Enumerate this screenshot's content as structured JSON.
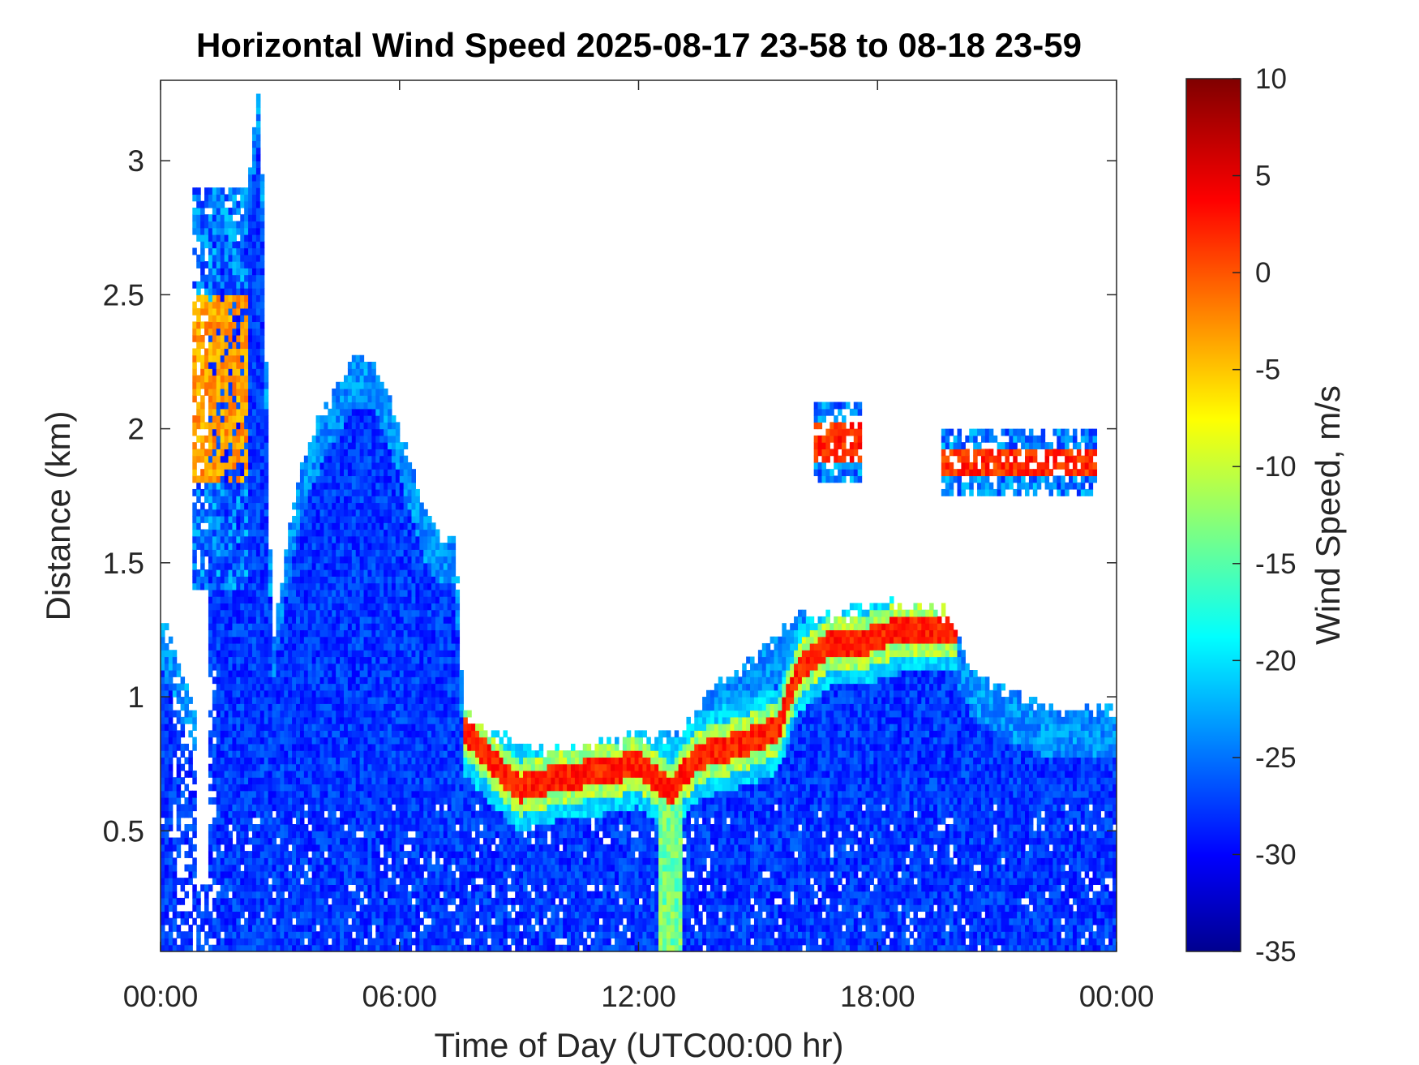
{
  "chart_data": {
    "type": "heatmap",
    "title": "Horizontal Wind Speed 2025-08-17 23-58 to 08-18 23-59",
    "xlabel": "Time of Day (UTC00:00 hr)",
    "ylabel": "Distance (km)",
    "x_ticks": [
      "00:00",
      "06:00",
      "12:00",
      "18:00",
      "00:00"
    ],
    "x_range_hours": [
      0,
      24
    ],
    "y_ticks": [
      "0.5",
      "1",
      "1.5",
      "2",
      "2.5",
      "3"
    ],
    "y_tick_values": [
      0.5,
      1,
      1.5,
      2,
      2.5,
      3
    ],
    "y_range_km": [
      0.05,
      3.3
    ],
    "colorbar": {
      "label": "Wind Speed, m/s",
      "range": [
        -35,
        10
      ],
      "ticks": [
        "10",
        "5",
        "0",
        "-5",
        "-10",
        "-15",
        "-20",
        "-25",
        "-30",
        "-35"
      ],
      "tick_values": [
        10,
        5,
        0,
        -5,
        -10,
        -15,
        -20,
        -25,
        -30,
        -35
      ],
      "colormap": "jet"
    },
    "data_mask_top_km": [
      [
        0,
        1.3
      ],
      [
        0.5,
        1.1
      ],
      [
        1.0,
        0.9
      ],
      [
        1.3,
        2.9
      ],
      [
        2.0,
        2.7
      ],
      [
        2.5,
        3.3
      ],
      [
        2.8,
        1.2
      ],
      [
        3.2,
        1.6
      ],
      [
        3.6,
        1.9
      ],
      [
        4.2,
        2.1
      ],
      [
        4.8,
        2.25
      ],
      [
        5.4,
        2.25
      ],
      [
        6.0,
        2.0
      ],
      [
        6.6,
        1.7
      ],
      [
        7.0,
        1.6
      ],
      [
        7.4,
        1.6
      ],
      [
        7.6,
        0.95
      ],
      [
        8.0,
        0.88
      ],
      [
        9.0,
        0.82
      ],
      [
        10.0,
        0.8
      ],
      [
        11.0,
        0.82
      ],
      [
        12.0,
        0.85
      ],
      [
        13.0,
        0.85
      ],
      [
        14.0,
        1.05
      ],
      [
        15.0,
        1.15
      ],
      [
        16.0,
        1.3
      ],
      [
        17.0,
        1.3
      ],
      [
        18.0,
        1.35
      ],
      [
        19.0,
        1.35
      ],
      [
        19.8,
        1.3
      ],
      [
        20.4,
        1.1
      ],
      [
        21.5,
        1.0
      ],
      [
        22.5,
        0.95
      ],
      [
        23.5,
        0.95
      ],
      [
        24.0,
        0.95
      ]
    ],
    "wind_jet_core": {
      "approx_value_ms": 5,
      "path_km": [
        [
          7.6,
          0.88
        ],
        [
          8.2,
          0.78
        ],
        [
          9.0,
          0.66
        ],
        [
          10.0,
          0.7
        ],
        [
          11.0,
          0.72
        ],
        [
          12.0,
          0.75
        ],
        [
          12.8,
          0.65
        ],
        [
          13.5,
          0.78
        ],
        [
          14.5,
          0.82
        ],
        [
          15.5,
          0.88
        ],
        [
          16.0,
          1.1
        ],
        [
          16.8,
          1.2
        ],
        [
          17.5,
          1.2
        ],
        [
          18.5,
          1.25
        ],
        [
          19.5,
          1.25
        ]
      ]
    },
    "upper_layers": [
      {
        "x_hours": [
          16.4,
          17.6
        ],
        "y_km": [
          1.8,
          2.1
        ],
        "peak_ms": 5
      },
      {
        "x_hours": [
          19.6,
          23.5
        ],
        "y_km": [
          1.75,
          2.0
        ],
        "peak_ms": 5
      },
      {
        "x_hours": [
          0.8,
          2.2
        ],
        "y_km": [
          1.4,
          2.9
        ],
        "peak_ms": 0
      }
    ],
    "background_value_ms": -27,
    "grid": false,
    "legend": "colorbar-right"
  }
}
